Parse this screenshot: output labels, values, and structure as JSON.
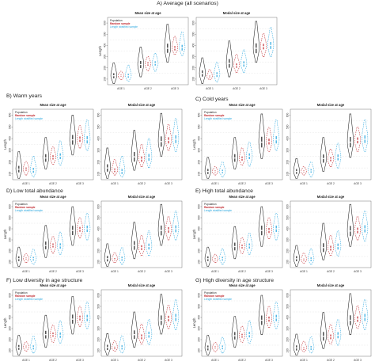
{
  "colors": {
    "population": "#222222",
    "random_sample": "#c0282e",
    "length_stratified_sample": "#2aa7df",
    "grid": "#d8d8d8"
  },
  "legend": {
    "population": "Population",
    "random_sample": "Random sample",
    "length_stratified_sample": "Length stratified sample"
  },
  "plot_titles": {
    "mean": "Mean size at age",
    "modal": "Modal size at age"
  },
  "ylabel": "Length",
  "chart_data": {
    "type": "violin",
    "categories": [
      "AGE 1",
      "AGE 2",
      "AGE 3"
    ],
    "yticks": [
      100,
      200,
      300,
      400,
      500,
      600
    ],
    "ylim": [
      50,
      650
    ],
    "series_names": [
      "Population",
      "Random sample",
      "Length stratified sample"
    ],
    "scenarios": [
      {
        "id": "A",
        "title": "A) Average (all scenarios)",
        "mean": {
          "age1": [
            [
              60,
              130,
              245
            ],
            [
              95,
              130,
              170
            ],
            [
              80,
              130,
              225
            ]
          ],
          "age2": [
            [
              120,
              230,
              385
            ],
            [
              175,
              235,
              300
            ],
            [
              170,
              240,
              330
            ]
          ],
          "age3": [
            [
              250,
              375,
              590
            ],
            [
              320,
              375,
              480
            ],
            [
              310,
              380,
              520
            ]
          ]
        },
        "modal": {
          "age1": [
            [
              60,
              150,
              290
            ],
            [
              95,
              120,
              185
            ],
            [
              75,
              140,
              250
            ]
          ],
          "age2": [
            [
              120,
              240,
              440
            ],
            [
              160,
              220,
              320
            ],
            [
              160,
              235,
              360
            ]
          ],
          "age3": [
            [
              250,
              375,
              615
            ],
            [
              300,
              390,
              505
            ],
            [
              300,
              400,
              560
            ]
          ]
        }
      },
      {
        "id": "B",
        "title": "B) Warm years",
        "mean": {
          "age1": [
            [
              60,
              140,
              290
            ],
            [
              90,
              140,
              205
            ],
            [
              75,
              130,
              250
            ]
          ],
          "age2": [
            [
              140,
              235,
              410
            ],
            [
              180,
              240,
              330
            ],
            [
              175,
              250,
              380
            ]
          ],
          "age3": [
            [
              260,
              390,
              600
            ],
            [
              320,
              395,
              510
            ],
            [
              300,
              390,
              560
            ]
          ]
        },
        "modal": {
          "age1": [
            [
              60,
              150,
              320
            ],
            [
              90,
              130,
              220
            ],
            [
              75,
              120,
              250
            ]
          ],
          "age2": [
            [
              130,
              245,
              470
            ],
            [
              160,
              225,
              350
            ],
            [
              155,
              240,
              400
            ]
          ],
          "age3": [
            [
              250,
              375,
              615
            ],
            [
              300,
              385,
              520
            ],
            [
              290,
              395,
              570
            ]
          ]
        }
      },
      {
        "id": "C",
        "title": "C) Cold years",
        "mean": {
          "age1": [
            [
              60,
              120,
              240
            ],
            [
              90,
              120,
              160
            ],
            [
              75,
              120,
              200
            ]
          ],
          "age2": [
            [
              140,
              235,
              410
            ],
            [
              175,
              230,
              320
            ],
            [
              165,
              250,
              370
            ]
          ],
          "age3": [
            [
              230,
              370,
              610
            ],
            [
              290,
              375,
              495
            ],
            [
              300,
              390,
              560
            ]
          ]
        },
        "modal": {
          "age1": [
            [
              60,
              120,
              230
            ],
            [
              90,
              120,
              160
            ],
            [
              75,
              125,
              200
            ]
          ],
          "age2": [
            [
              120,
              230,
              410
            ],
            [
              160,
              225,
              310
            ],
            [
              150,
              240,
              360
            ]
          ],
          "age3": [
            [
              240,
              370,
              610
            ],
            [
              290,
              385,
              500
            ],
            [
              290,
              395,
              560
            ]
          ]
        }
      },
      {
        "id": "D",
        "title": "D) Low total abundance",
        "mean": {
          "age1": [
            [
              60,
              130,
              235
            ],
            [
              95,
              130,
              175
            ],
            [
              80,
              130,
              215
            ]
          ],
          "age2": [
            [
              140,
              250,
              430
            ],
            [
              180,
              250,
              330
            ],
            [
              170,
              245,
              370
            ]
          ],
          "age3": [
            [
              250,
              385,
              600
            ],
            [
              320,
              395,
              500
            ],
            [
              300,
              400,
              540
            ]
          ]
        },
        "modal": {
          "age1": [
            [
              60,
              130,
              265
            ],
            [
              95,
              125,
              185
            ],
            [
              80,
              130,
              230
            ]
          ],
          "age2": [
            [
              130,
              250,
              460
            ],
            [
              160,
              230,
              340
            ],
            [
              160,
              240,
              380
            ]
          ],
          "age3": [
            [
              250,
              385,
              620
            ],
            [
              300,
              390,
              510
            ],
            [
              300,
              400,
              560
            ]
          ]
        }
      },
      {
        "id": "E",
        "title": "E) High total abundance",
        "mean": {
          "age1": [
            [
              60,
              130,
              235
            ],
            [
              95,
              125,
              170
            ],
            [
              80,
              130,
              220
            ]
          ],
          "age2": [
            [
              130,
              240,
              420
            ],
            [
              175,
              240,
              320
            ],
            [
              170,
              245,
              360
            ]
          ],
          "age3": [
            [
              240,
              385,
              600
            ],
            [
              310,
              385,
              500
            ],
            [
              300,
              400,
              540
            ]
          ]
        },
        "modal": {
          "age1": [
            [
              60,
              130,
              250
            ],
            [
              90,
              120,
              180
            ],
            [
              80,
              125,
              220
            ]
          ],
          "age2": [
            [
              120,
              230,
              450
            ],
            [
              160,
              225,
              340
            ],
            [
              155,
              240,
              380
            ]
          ],
          "age3": [
            [
              240,
              380,
              620
            ],
            [
              300,
              385,
              510
            ],
            [
              290,
              400,
              560
            ]
          ]
        }
      },
      {
        "id": "F",
        "title": "F) Low diversity in age structure",
        "mean": {
          "age1": [
            [
              60,
              130,
              240
            ],
            [
              95,
              135,
              180
            ],
            [
              80,
              130,
              230
            ]
          ],
          "age2": [
            [
              130,
              245,
              420
            ],
            [
              175,
              245,
              330
            ],
            [
              170,
              240,
              370
            ]
          ],
          "age3": [
            [
              250,
              385,
              590
            ],
            [
              320,
              395,
              500
            ],
            [
              300,
              395,
              540
            ]
          ]
        },
        "modal": {
          "age1": [
            [
              60,
              130,
              255
            ],
            [
              95,
              125,
              190
            ],
            [
              80,
              130,
              235
            ]
          ],
          "age2": [
            [
              130,
              245,
              450
            ],
            [
              160,
              225,
              340
            ],
            [
              155,
              245,
              380
            ]
          ],
          "age3": [
            [
              250,
              375,
              610
            ],
            [
              300,
              390,
              510
            ],
            [
              290,
              400,
              560
            ]
          ]
        }
      },
      {
        "id": "G",
        "title": "G) High diversity in age structure",
        "mean": {
          "age1": [
            [
              60,
              125,
              240
            ],
            [
              90,
              130,
              175
            ],
            [
              80,
              130,
              220
            ]
          ],
          "age2": [
            [
              130,
              235,
              410
            ],
            [
              175,
              235,
              320
            ],
            [
              165,
              245,
              370
            ]
          ],
          "age3": [
            [
              245,
              375,
              600
            ],
            [
              310,
              385,
              500
            ],
            [
              300,
              395,
              540
            ]
          ]
        },
        "modal": {
          "age1": [
            [
              60,
              125,
              250
            ],
            [
              90,
              120,
              185
            ],
            [
              80,
              125,
              225
            ]
          ],
          "age2": [
            [
              120,
              230,
              445
            ],
            [
              160,
              225,
              335
            ],
            [
              150,
              240,
              380
            ]
          ],
          "age3": [
            [
              245,
              375,
              615
            ],
            [
              300,
              385,
              505
            ],
            [
              290,
              400,
              560
            ]
          ]
        }
      }
    ]
  }
}
